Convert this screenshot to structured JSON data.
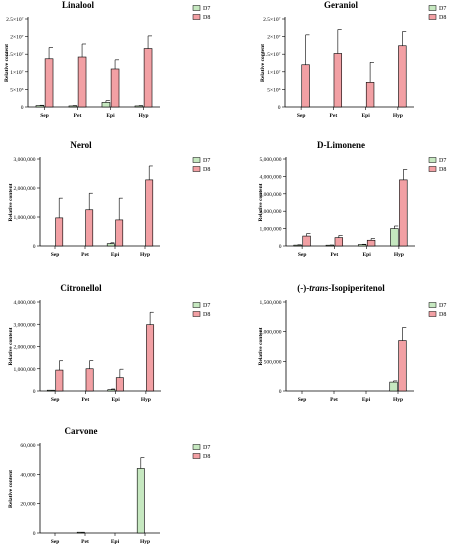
{
  "colors": {
    "D7": "#c6e8c0",
    "D8": "#f2a0a4",
    "axis": "#000000"
  },
  "legend": [
    "D7",
    "D8"
  ],
  "chart_data": [
    {
      "type": "bar",
      "title": "Linalool",
      "ylabel": "Relative content",
      "categories": [
        "Sep",
        "Pet",
        "Epi",
        "Hyp"
      ],
      "ylim": [
        0,
        25000000
      ],
      "yticks": [
        0,
        5000000,
        10000000,
        15000000,
        20000000,
        25000000
      ],
      "ytick_labels": [
        "0",
        "5×10⁶",
        "1×10⁷",
        "1.5×10⁷",
        "2×10⁷",
        "2.5×10⁷"
      ],
      "series": [
        {
          "name": "D7",
          "values": [
            400000,
            300000,
            1300000,
            300000
          ],
          "errors": [
            100000,
            100000,
            500000,
            100000
          ]
        },
        {
          "name": "D8",
          "values": [
            13700000,
            14200000,
            10800000,
            16600000
          ],
          "errors": [
            3200000,
            3700000,
            2600000,
            3600000
          ]
        }
      ]
    },
    {
      "type": "bar",
      "title": "Geraniol",
      "ylabel": "Relative content",
      "categories": [
        "Sep",
        "Pet",
        "Epi",
        "Hyp"
      ],
      "ylim": [
        0,
        25000000
      ],
      "yticks": [
        0,
        5000000,
        10000000,
        15000000,
        20000000,
        25000000
      ],
      "ytick_labels": [
        "0",
        "5×10⁶",
        "1×10⁷",
        "1.5×10⁷",
        "2×10⁷",
        "2.5×10⁷"
      ],
      "series": [
        {
          "name": "D7",
          "values": [
            0,
            0,
            0,
            0
          ],
          "errors": [
            0,
            0,
            0,
            0
          ]
        },
        {
          "name": "D8",
          "values": [
            12000000,
            15200000,
            7000000,
            17400000
          ],
          "errors": [
            8500000,
            6800000,
            5700000,
            4000000
          ]
        }
      ]
    },
    {
      "type": "bar",
      "title": "Nerol",
      "ylabel": "Relative content",
      "categories": [
        "Sep",
        "Pet",
        "Epi",
        "Hyp"
      ],
      "ylim": [
        0,
        3000000
      ],
      "yticks": [
        0,
        1000000,
        2000000,
        3000000
      ],
      "ytick_labels": [
        "0",
        "1,000,000",
        "2,000,000",
        "3,000,000"
      ],
      "series": [
        {
          "name": "D7",
          "values": [
            0,
            0,
            80000,
            0
          ],
          "errors": [
            0,
            0,
            30000,
            0
          ]
        },
        {
          "name": "D8",
          "values": [
            970000,
            1250000,
            900000,
            2280000
          ],
          "errors": [
            680000,
            570000,
            750000,
            480000
          ]
        }
      ]
    },
    {
      "type": "bar",
      "title": "D-Limonene",
      "ylabel": "Relative content",
      "categories": [
        "Sep",
        "Pet",
        "Epi",
        "Hyp"
      ],
      "ylim": [
        0,
        5000000
      ],
      "yticks": [
        0,
        1000000,
        2000000,
        3000000,
        4000000,
        5000000
      ],
      "ytick_labels": [
        "0",
        "1,000,000",
        "2,000,000",
        "3,000,000",
        "4,000,000",
        "5,000,000"
      ],
      "series": [
        {
          "name": "D7",
          "values": [
            50000,
            40000,
            80000,
            1000000
          ],
          "errors": [
            20000,
            15000,
            20000,
            150000
          ]
        },
        {
          "name": "D8",
          "values": [
            570000,
            480000,
            330000,
            3800000
          ],
          "errors": [
            150000,
            130000,
            100000,
            600000
          ]
        }
      ]
    },
    {
      "type": "bar",
      "title": "Citronellol",
      "ylabel": "Relative content",
      "categories": [
        "Sep",
        "Pet",
        "Epi",
        "Hyp"
      ],
      "ylim": [
        0,
        4000000
      ],
      "yticks": [
        0,
        1000000,
        2000000,
        3000000,
        4000000
      ],
      "ytick_labels": [
        "0",
        "1,000,000",
        "2,000,000",
        "3,000,000",
        "4,000,000"
      ],
      "series": [
        {
          "name": "D7",
          "values": [
            20000,
            0,
            60000,
            0
          ],
          "errors": [
            10000,
            0,
            30000,
            0
          ]
        },
        {
          "name": "D8",
          "values": [
            940000,
            1000000,
            600000,
            2980000
          ],
          "errors": [
            420000,
            370000,
            380000,
            560000
          ]
        }
      ]
    },
    {
      "type": "bar",
      "title": "(-)-trans-Isopiperitenol",
      "title_parts": [
        "(-)-",
        "trans",
        "-Isopiperitenol"
      ],
      "ylabel": "Relative content",
      "categories": [
        "Sep",
        "Pet",
        "Epi",
        "Hyp"
      ],
      "ylim": [
        0,
        1500000
      ],
      "yticks": [
        0,
        500000,
        1000000,
        1500000
      ],
      "ytick_labels": [
        "0",
        "500,000",
        "1,000,000",
        "1,500,000"
      ],
      "series": [
        {
          "name": "D7",
          "values": [
            0,
            0,
            0,
            150000
          ],
          "errors": [
            0,
            0,
            0,
            20000
          ]
        },
        {
          "name": "D8",
          "values": [
            0,
            0,
            0,
            850000
          ],
          "errors": [
            0,
            0,
            0,
            220000
          ]
        }
      ]
    },
    {
      "type": "bar",
      "title": "Carvone",
      "ylabel": "Relative content",
      "categories": [
        "Sep",
        "Pet",
        "Epi",
        "Hyp"
      ],
      "ylim": [
        0,
        60000
      ],
      "yticks": [
        0,
        20000,
        40000,
        60000
      ],
      "ytick_labels": [
        "0",
        "20,000",
        "40,000",
        "60,000"
      ],
      "series": [
        {
          "name": "D7",
          "values": [
            0,
            300,
            0,
            44000
          ],
          "errors": [
            0,
            100,
            0,
            7500
          ]
        },
        {
          "name": "D8",
          "values": [
            0,
            0,
            0,
            0
          ],
          "errors": [
            0,
            0,
            0,
            0
          ]
        }
      ]
    }
  ]
}
